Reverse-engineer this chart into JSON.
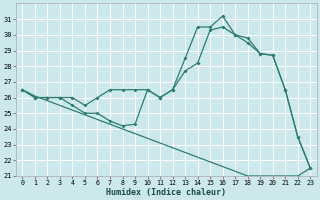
{
  "xlabel": "Humidex (Indice chaleur)",
  "background_color": "#cce8ec",
  "line_color": "#2d7d6e",
  "grid_color": "#ffffff",
  "x_values": [
    0,
    1,
    2,
    3,
    4,
    5,
    6,
    7,
    8,
    9,
    10,
    11,
    12,
    13,
    14,
    15,
    16,
    17,
    18,
    19,
    20,
    21,
    22,
    23
  ],
  "line1": [
    26.5,
    26.0,
    26.0,
    26.0,
    26.0,
    25.5,
    26.0,
    26.5,
    26.5,
    26.5,
    26.5,
    26.0,
    26.5,
    28.5,
    30.5,
    30.5,
    31.2,
    30.0,
    29.5,
    28.8,
    28.7,
    26.5,
    23.5,
    21.5
  ],
  "line2": [
    26.5,
    26.0,
    26.0,
    26.0,
    25.5,
    25.0,
    25.0,
    24.5,
    24.2,
    24.3,
    26.5,
    26.0,
    26.5,
    27.7,
    28.2,
    30.3,
    30.5,
    30.0,
    29.8,
    28.8,
    28.7,
    26.5,
    23.5,
    21.5
  ],
  "line3": [
    26.5,
    26.1,
    25.8,
    25.5,
    25.2,
    24.9,
    24.6,
    24.3,
    24.0,
    23.7,
    23.4,
    23.1,
    22.8,
    22.5,
    22.2,
    21.9,
    21.6,
    21.3,
    21.0,
    21.0,
    21.0,
    21.0,
    21.0,
    21.5
  ],
  "ylim": [
    21,
    32
  ],
  "xlim": [
    -0.5,
    23.5
  ],
  "yticks": [
    21,
    22,
    23,
    24,
    25,
    26,
    27,
    28,
    29,
    30,
    31
  ],
  "xticks": [
    0,
    1,
    2,
    3,
    4,
    5,
    6,
    7,
    8,
    9,
    10,
    11,
    12,
    13,
    14,
    15,
    16,
    17,
    18,
    19,
    20,
    21,
    22,
    23
  ]
}
